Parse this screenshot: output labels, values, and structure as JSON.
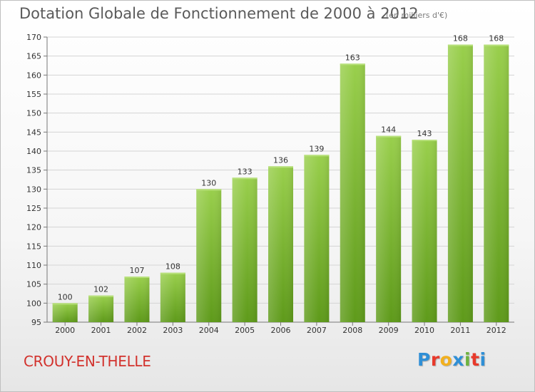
{
  "header": {
    "title": "Dotation Globale de Fonctionnement de 2000 à 2012",
    "subtitle": "(en milliers d'€)"
  },
  "footer": {
    "commune": "CROUY-EN-THELLE",
    "brand_letters": [
      "P",
      "r",
      "o",
      "x",
      "i",
      "t",
      "i"
    ],
    "brand_colors": [
      "#2f8fd6",
      "#e8392b",
      "#f2b01e",
      "#2f8fd6",
      "#6db33f",
      "#e8392b",
      "#2f8fd6"
    ]
  },
  "chart_data": {
    "type": "bar",
    "categories": [
      "2000",
      "2001",
      "2002",
      "2003",
      "2004",
      "2005",
      "2006",
      "2007",
      "2008",
      "2009",
      "2010",
      "2011",
      "2012"
    ],
    "values": [
      100,
      102,
      107,
      108,
      130,
      133,
      136,
      139,
      163,
      144,
      143,
      168,
      168
    ],
    "ylim": [
      95,
      170
    ],
    "yticks": [
      95,
      100,
      105,
      110,
      115,
      120,
      125,
      130,
      135,
      140,
      145,
      150,
      155,
      160,
      165,
      170
    ],
    "grid": true,
    "bar_color": "#8dc63f",
    "bar_color_dark": "#5e9a1a",
    "data_labels": true
  }
}
